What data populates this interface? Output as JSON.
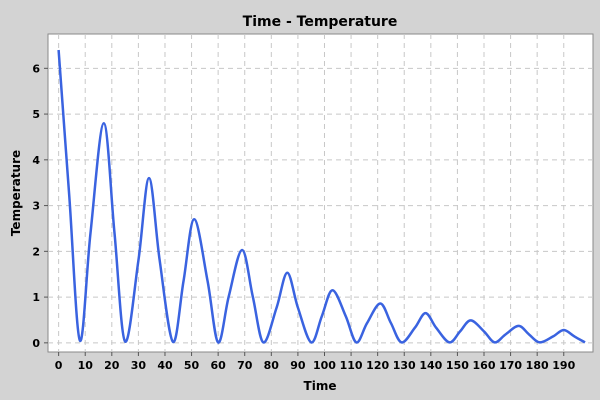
{
  "chart_data": {
    "type": "line",
    "title": "Time - Temperature",
    "xlabel": "Time",
    "ylabel": "Temperature",
    "xlim": [
      -4,
      201
    ],
    "ylim": [
      -0.2,
      6.75
    ],
    "x_ticks": [
      0,
      10,
      20,
      30,
      40,
      50,
      60,
      70,
      80,
      90,
      100,
      110,
      120,
      130,
      140,
      150,
      160,
      170,
      180,
      190
    ],
    "y_ticks": [
      0,
      1,
      2,
      3,
      4,
      5,
      6
    ],
    "grid": true,
    "colors": {
      "line": "#3a63e0",
      "plot_bg": "#ffffff",
      "chart_bg": "#d3d3d3",
      "grid": "#c8c8c8"
    },
    "series": [
      {
        "x": [
          0,
          4,
          8,
          12,
          17,
          21,
          25,
          30,
          34,
          38,
          43,
          47,
          51,
          56,
          60,
          64,
          69,
          73,
          77,
          82,
          86,
          90,
          95,
          99,
          103,
          108,
          112,
          116,
          121,
          125,
          129,
          134,
          138,
          142,
          147,
          151,
          155,
          160,
          164,
          168,
          173,
          177,
          181,
          186,
          190,
          194,
          198
        ],
        "y": [
          6.4,
          3.2,
          0.05,
          2.4,
          4.8,
          2.4,
          0.03,
          1.8,
          3.6,
          1.8,
          0.02,
          1.36,
          2.7,
          1.36,
          0.01,
          1.02,
          2.03,
          1.02,
          0.01,
          0.77,
          1.53,
          0.77,
          0.01,
          0.58,
          1.15,
          0.58,
          0.01,
          0.43,
          0.86,
          0.43,
          0.01,
          0.33,
          0.65,
          0.33,
          0.01,
          0.25,
          0.49,
          0.25,
          0.01,
          0.18,
          0.37,
          0.18,
          0.01,
          0.14,
          0.28,
          0.14,
          0.01
        ]
      }
    ]
  }
}
